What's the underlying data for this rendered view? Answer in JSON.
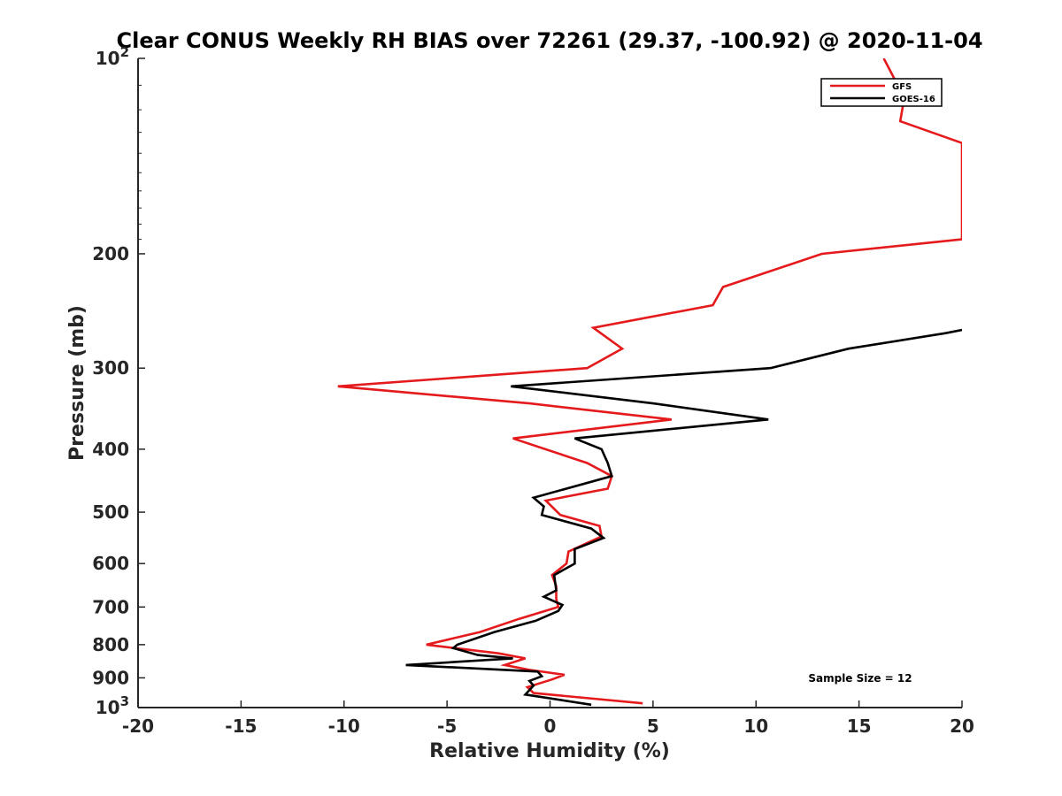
{
  "chart_data": {
    "type": "line",
    "title": "Clear CONUS Weekly RH BIAS over 72261 (29.37, -100.92) @ 2020-11-04",
    "xlabel": "Relative Humidity (%)",
    "ylabel": "Pressure (mb)",
    "xlim": [
      -20,
      20
    ],
    "ylim": [
      100,
      1000
    ],
    "yscale": "log",
    "yreversed": true,
    "x_ticks": [
      "-20",
      "-15",
      "-10",
      "-5",
      "0",
      "5",
      "10",
      "15",
      "20"
    ],
    "y_ticks": [
      {
        "value": 100,
        "base": "10",
        "exp": "2"
      },
      {
        "value": 200,
        "label": "200"
      },
      {
        "value": 300,
        "label": "300"
      },
      {
        "value": 400,
        "label": "400"
      },
      {
        "value": 500,
        "label": "500"
      },
      {
        "value": 600,
        "label": "600"
      },
      {
        "value": 700,
        "label": "700"
      },
      {
        "value": 800,
        "label": "800"
      },
      {
        "value": 900,
        "label": "900"
      },
      {
        "value": 1000,
        "base": "10",
        "exp": "3"
      }
    ],
    "grid": false,
    "legend_position": "top-right",
    "series": [
      {
        "name": "GFS",
        "color": "#e41a1c",
        "points": [
          [
            16.2,
            100
          ],
          [
            17.2,
            115
          ],
          [
            17.0,
            125
          ],
          [
            20.0,
            135
          ],
          [
            20.0,
            190
          ],
          [
            13.2,
            200
          ],
          [
            8.4,
            225
          ],
          [
            7.9,
            240
          ],
          [
            2.1,
            260
          ],
          [
            3.5,
            280
          ],
          [
            1.8,
            300
          ],
          [
            -10.3,
            320
          ],
          [
            -1.0,
            340
          ],
          [
            5.9,
            360
          ],
          [
            -1.8,
            385
          ],
          [
            1.8,
            420
          ],
          [
            3.0,
            440
          ],
          [
            2.8,
            460
          ],
          [
            -0.2,
            480
          ],
          [
            0.5,
            505
          ],
          [
            2.4,
            525
          ],
          [
            2.5,
            545
          ],
          [
            0.9,
            575
          ],
          [
            0.8,
            600
          ],
          [
            0.1,
            625
          ],
          [
            0.3,
            650
          ],
          [
            0.3,
            680
          ],
          [
            0.4,
            700
          ],
          [
            -1.5,
            730
          ],
          [
            -3.4,
            765
          ],
          [
            -6.0,
            800
          ],
          [
            -2.5,
            825
          ],
          [
            -1.2,
            840
          ],
          [
            -2.2,
            860
          ],
          [
            -1.0,
            875
          ],
          [
            0.7,
            890
          ],
          [
            0.1,
            905
          ],
          [
            -1.1,
            930
          ],
          [
            -0.8,
            950
          ],
          [
            4.5,
            985
          ]
        ]
      },
      {
        "name": "GOES-16",
        "color": "#000000",
        "points": [
          [
            20.0,
            262
          ],
          [
            19.2,
            265
          ],
          [
            14.5,
            280
          ],
          [
            10.7,
            300
          ],
          [
            -1.9,
            320
          ],
          [
            5.0,
            340
          ],
          [
            10.6,
            360
          ],
          [
            1.2,
            385
          ],
          [
            2.5,
            400
          ],
          [
            2.8,
            420
          ],
          [
            3.0,
            440
          ],
          [
            -0.8,
            475
          ],
          [
            -0.3,
            490
          ],
          [
            -0.4,
            505
          ],
          [
            2.0,
            530
          ],
          [
            2.6,
            548
          ],
          [
            1.2,
            570
          ],
          [
            1.2,
            600
          ],
          [
            0.2,
            625
          ],
          [
            0.3,
            660
          ],
          [
            -0.3,
            675
          ],
          [
            0.6,
            695
          ],
          [
            0.4,
            710
          ],
          [
            -0.7,
            735
          ],
          [
            -2.7,
            765
          ],
          [
            -4.5,
            800
          ],
          [
            -4.7,
            810
          ],
          [
            -3.5,
            830
          ],
          [
            -1.8,
            840
          ],
          [
            -7.0,
            860
          ],
          [
            -0.6,
            880
          ],
          [
            -0.4,
            895
          ],
          [
            -1.0,
            910
          ],
          [
            -0.8,
            925
          ],
          [
            -1.2,
            955
          ],
          [
            2.0,
            990
          ]
        ]
      }
    ],
    "annotations": [
      {
        "text": "Sample Size = 12"
      }
    ]
  }
}
